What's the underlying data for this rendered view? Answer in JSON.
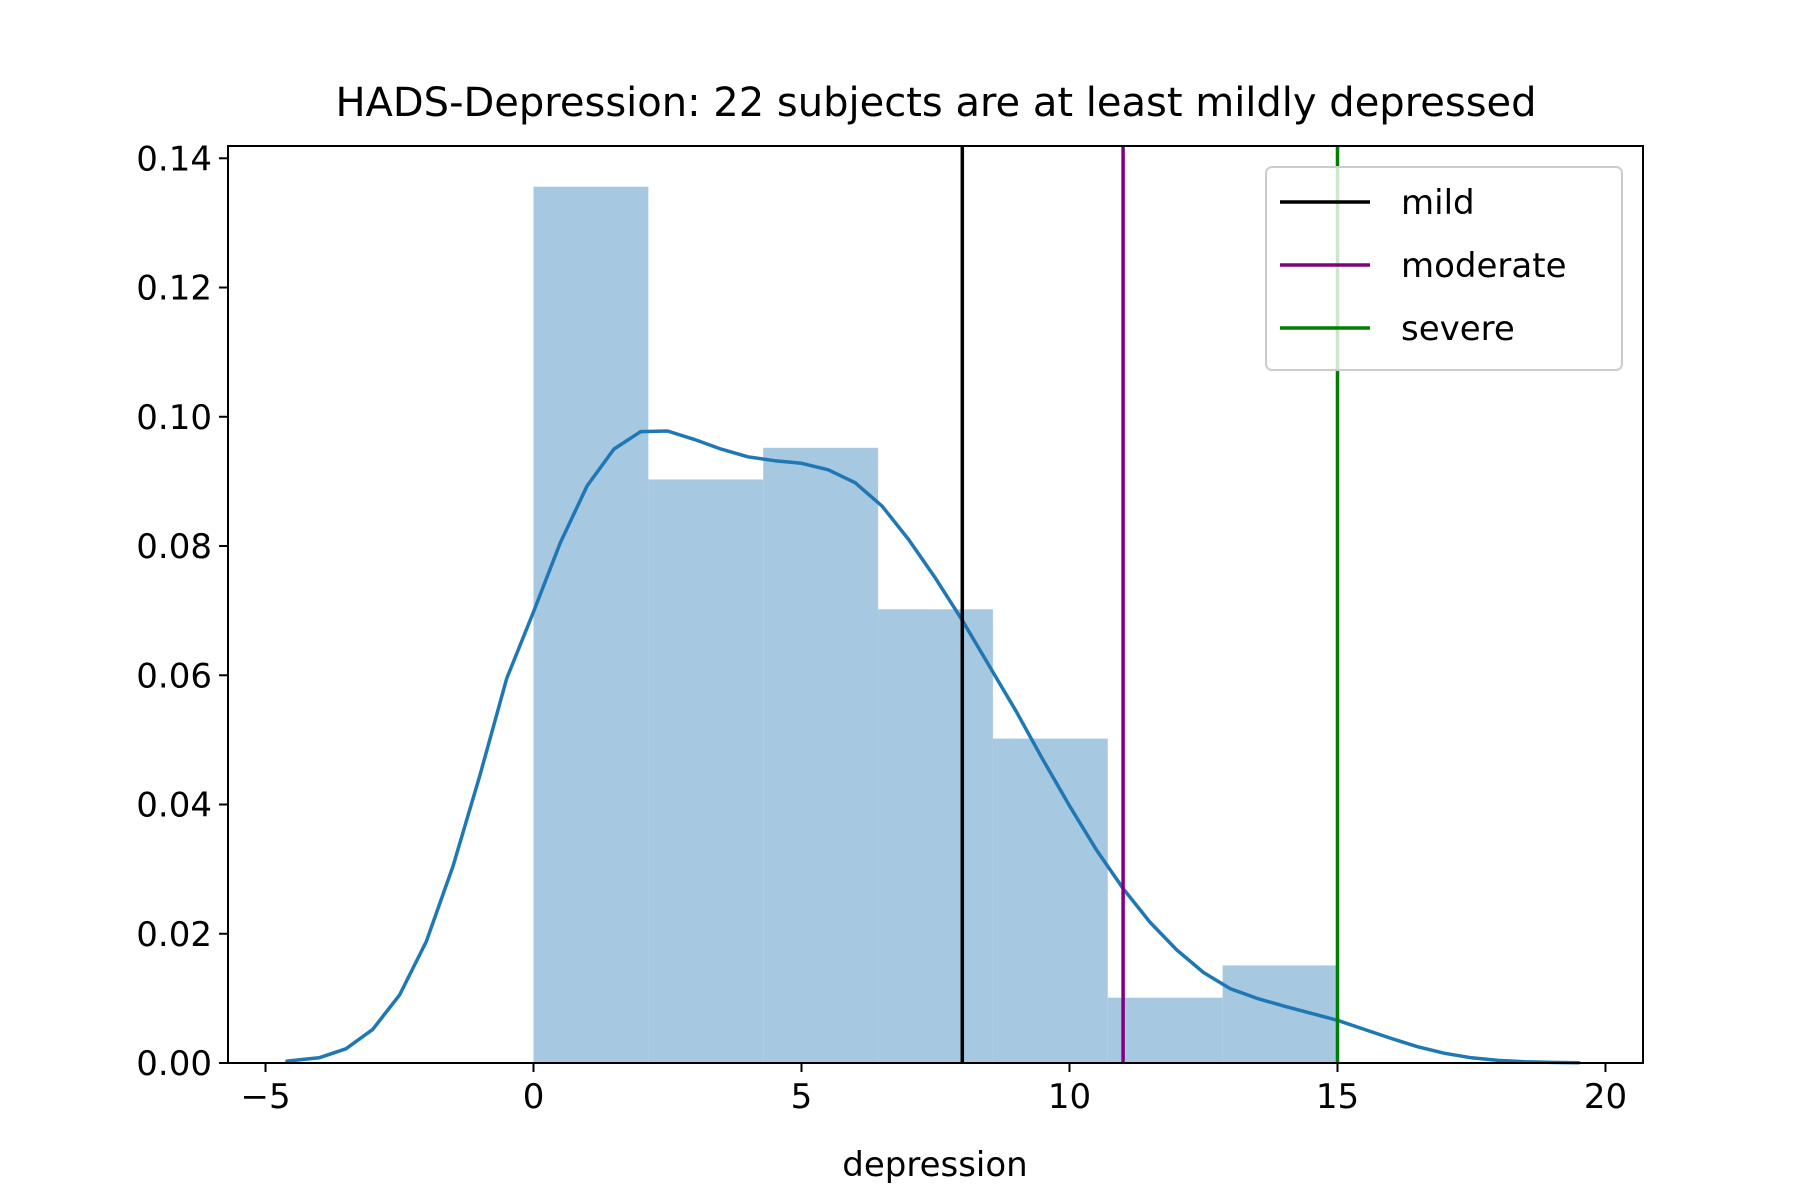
{
  "chart_data": {
    "type": "bar",
    "title": "HADS-Depression: 22 subjects are at least mildly depressed",
    "xlabel": "depression",
    "ylabel": "",
    "xlim": [
      -5.7,
      20.7
    ],
    "ylim": [
      0,
      0.1419
    ],
    "x_ticks": [
      -5,
      0,
      5,
      10,
      15,
      20
    ],
    "x_tick_labels": [
      "−5",
      "0",
      "5",
      "10",
      "15",
      "20"
    ],
    "y_ticks": [
      0,
      0.02,
      0.04,
      0.06,
      0.08,
      0.1,
      0.12,
      0.14
    ],
    "y_tick_labels": [
      "0.00",
      "0.02",
      "0.04",
      "0.06",
      "0.08",
      "0.10",
      "0.12",
      "0.14"
    ],
    "grid": false,
    "legend_position": "top-right",
    "histogram": {
      "color": "#a6c8e0",
      "bin_edges": [
        0,
        2.143,
        4.286,
        6.429,
        8.571,
        10.714,
        12.857,
        15.0
      ],
      "values": [
        0.1356,
        0.0903,
        0.0952,
        0.0702,
        0.0502,
        0.0101,
        0.0151
      ]
    },
    "kde": {
      "color": "#1f77b4",
      "x": [
        -4.6,
        -4.0,
        -3.5,
        -3.0,
        -2.5,
        -2.0,
        -1.5,
        -1.0,
        -0.5,
        0.0,
        0.5,
        1.0,
        1.5,
        2.0,
        2.5,
        3.0,
        3.5,
        4.0,
        4.5,
        5.0,
        5.5,
        6.0,
        6.5,
        7.0,
        7.5,
        8.0,
        8.5,
        9.0,
        9.5,
        10.0,
        10.5,
        11.0,
        11.5,
        12.0,
        12.5,
        13.0,
        13.5,
        14.0,
        14.5,
        15.0,
        15.5,
        16.0,
        16.5,
        17.0,
        17.5,
        18.0,
        18.5,
        19.0,
        19.5
      ],
      "y": [
        0.0003,
        0.0008,
        0.0022,
        0.0052,
        0.0105,
        0.0188,
        0.0305,
        0.0445,
        0.0595,
        0.0698,
        0.0805,
        0.0893,
        0.095,
        0.0977,
        0.0978,
        0.0965,
        0.095,
        0.0938,
        0.0932,
        0.0928,
        0.0918,
        0.0898,
        0.0862,
        0.081,
        0.075,
        0.0685,
        0.0615,
        0.0545,
        0.047,
        0.0398,
        0.033,
        0.027,
        0.0218,
        0.0175,
        0.014,
        0.0115,
        0.01,
        0.0088,
        0.0077,
        0.0066,
        0.0052,
        0.0038,
        0.0025,
        0.0015,
        0.0008,
        0.0004,
        0.0002,
        0.0001,
        5e-05
      ]
    },
    "thresholds": [
      {
        "name": "mild",
        "x": 8,
        "color": "#000000"
      },
      {
        "name": "moderate",
        "x": 11,
        "color": "#800080"
      },
      {
        "name": "severe",
        "x": 15,
        "color": "#008000"
      }
    ]
  }
}
